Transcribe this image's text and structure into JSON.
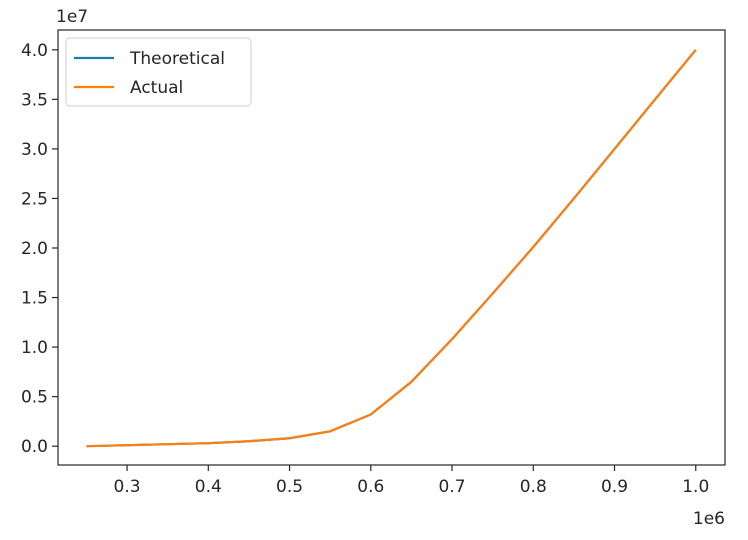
{
  "chart_data": {
    "type": "line",
    "x": [
      0.25,
      0.3,
      0.35,
      0.4,
      0.45,
      0.5,
      0.55,
      0.6,
      0.65,
      0.7,
      0.75,
      0.8,
      0.85,
      0.9,
      0.95,
      1.0
    ],
    "series": [
      {
        "name": "Theoretical",
        "color": "#1f77b4",
        "values": [
          0.0,
          0.01,
          0.02,
          0.03,
          0.05,
          0.08,
          0.15,
          0.32,
          0.65,
          1.08,
          1.54,
          2.01,
          2.5,
          3.0,
          3.5,
          4.0
        ]
      },
      {
        "name": "Actual",
        "color": "#ff7f0e",
        "values": [
          0.0,
          0.01,
          0.02,
          0.03,
          0.05,
          0.08,
          0.15,
          0.32,
          0.65,
          1.08,
          1.54,
          2.01,
          2.5,
          3.0,
          3.5,
          4.0
        ]
      }
    ],
    "xlim": [
      0.215,
      1.036
    ],
    "ylim": [
      -0.19,
      4.2
    ],
    "xticks": [
      0.3,
      0.4,
      0.5,
      0.6,
      0.7,
      0.8,
      0.9,
      {
        "value": 1.0,
        "label": "1.0"
      }
    ],
    "yticks": [
      {
        "value": 0,
        "label": "0.0"
      },
      0.5,
      {
        "value": 1,
        "label": "1.0"
      },
      1.5,
      {
        "value": 2,
        "label": "2.0"
      },
      2.5,
      {
        "value": 3,
        "label": "3.0"
      },
      3.5,
      {
        "value": 4,
        "label": "4.0"
      }
    ],
    "x_offset_label": "1e6",
    "y_offset_label": "1e7",
    "legend": "upper left"
  }
}
